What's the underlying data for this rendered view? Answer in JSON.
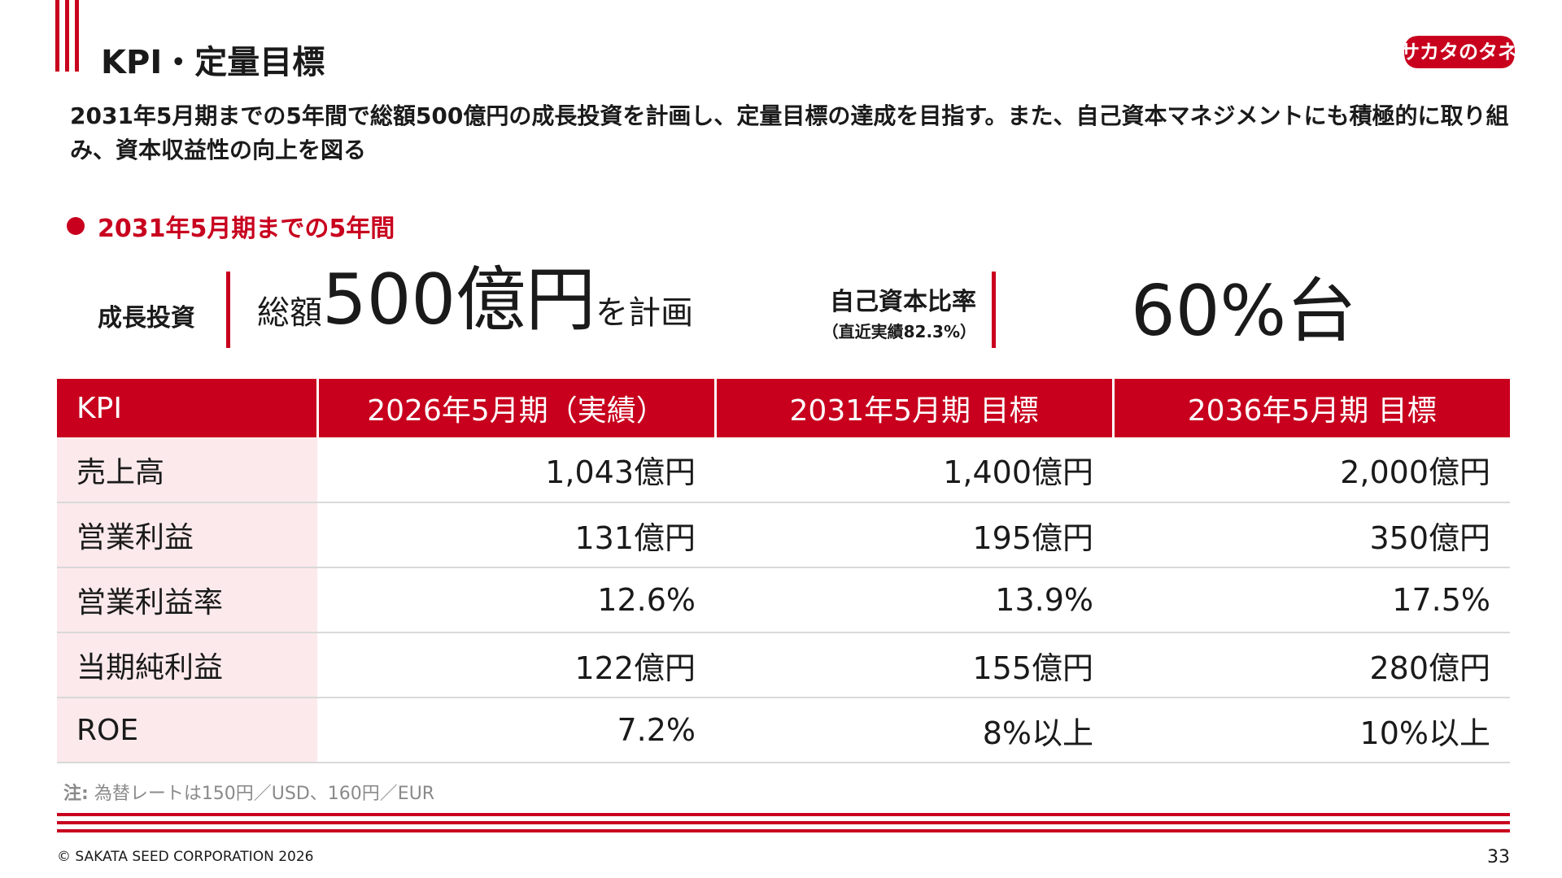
{
  "header": {
    "title": "KPI・定量目標",
    "logo_text": "サカタのタネ",
    "brand_color": "#c8001e"
  },
  "lead": "2031年5月期までの5年間で総額500億円の成長投資を計画し、定量目標の達成を目指す。また、自己資本マネジメントにも積極的に取り組み、資本収益性の向上を図る",
  "section": {
    "heading": "2031年5月期までの5年間"
  },
  "summary": {
    "investment_label": "成長投資",
    "investment_prefix": "総額",
    "investment_amount": "500億円",
    "investment_suffix": "を計画",
    "equity_label": "自己資本比率",
    "equity_sub": "（直近実績82.3%）",
    "equity_value": "60%台"
  },
  "table": {
    "headers": [
      "KPI",
      "2026年5月期（実績）",
      "2031年5月期 目標",
      "2036年5月期 目標"
    ],
    "rows": [
      {
        "label": "売上高",
        "values": [
          "1,043億円",
          "1,400億円",
          "2,000億円"
        ]
      },
      {
        "label": "営業利益",
        "values": [
          "131億円",
          "195億円",
          "350億円"
        ]
      },
      {
        "label": "営業利益率",
        "values": [
          "12.6%",
          "13.9%",
          "17.5%"
        ]
      },
      {
        "label": "当期純利益",
        "values": [
          "122億円",
          "155億円",
          "280億円"
        ]
      },
      {
        "label": "ROE",
        "values": [
          "7.2%",
          "8%以上",
          "10%以上"
        ]
      }
    ]
  },
  "note": {
    "label": "注:",
    "text": "為替レートは150円／USD、160円／EUR"
  },
  "footer": {
    "copyright": "© SAKATA SEED CORPORATION 2026",
    "page_number": "33"
  }
}
